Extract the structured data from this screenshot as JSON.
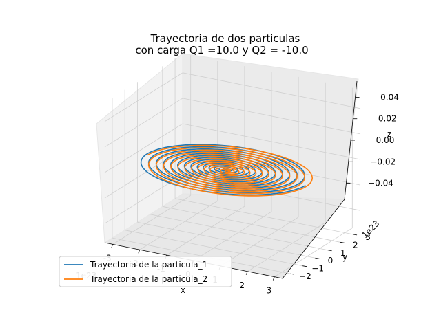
{
  "chart_data": {
    "type": "line",
    "projection": "3d",
    "title": "Trayectoria de dos particulas\ncon carga Q1 =10.0 y Q2 = -10.0",
    "xlabel": "x",
    "ylabel": "y",
    "zlabel": "z",
    "x_offset_label": "1e23",
    "y_offset_label": "1e23",
    "x_ticks": [
      -3,
      -2,
      -1,
      0,
      1,
      2,
      3
    ],
    "y_ticks": [
      -2,
      -1,
      0,
      1,
      2,
      3
    ],
    "z_ticks": [
      0.04,
      0.02,
      0.0,
      -0.02,
      -0.04
    ],
    "z_tick_labels": [
      "0.04",
      "0.02",
      "0.00",
      "−0.02",
      "−0.04"
    ],
    "xlim": [
      -3.3,
      3.3
    ],
    "ylim": [
      -2.6,
      3.6
    ],
    "zlim": [
      -0.055,
      0.055
    ],
    "grid": true,
    "legend_position": "lower-left",
    "series": [
      {
        "name": "Trayectoria de la particula_1",
        "color": "#1f77b4",
        "shape": "spiral",
        "z": 0,
        "turns": 14,
        "x_amplitude_range": [
          0.0,
          3.0
        ],
        "y_amplitude_range": [
          0.0,
          2.6
        ]
      },
      {
        "name": "Trayectoria de la particula_2",
        "color": "#ff7f0e",
        "shape": "spiral",
        "z": 0,
        "turns": 14,
        "x_amplitude_range": [
          0.0,
          3.0
        ],
        "y_amplitude_range": [
          0.0,
          2.6
        ]
      }
    ]
  }
}
